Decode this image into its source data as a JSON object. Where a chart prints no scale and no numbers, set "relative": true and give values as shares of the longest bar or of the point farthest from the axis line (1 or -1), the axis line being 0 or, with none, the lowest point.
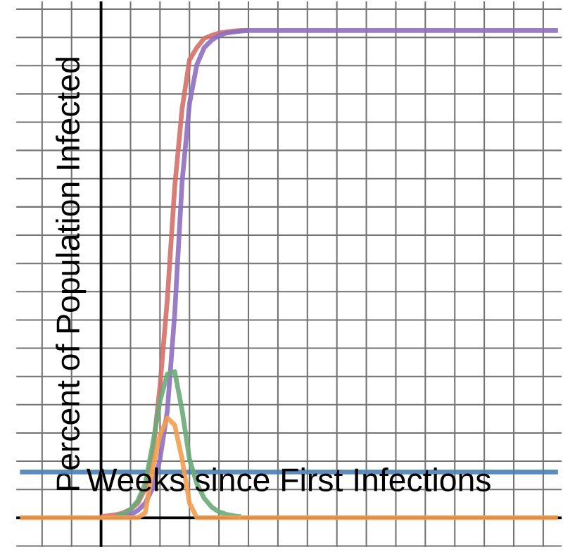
{
  "chart_data": {
    "type": "line",
    "relative": true,
    "xlabel": "Weeks since First Infections",
    "ylabel": "Percent of Population Infected",
    "categories": [
      null,
      null,
      null,
      null,
      null,
      null,
      null,
      null,
      null,
      null,
      null,
      null,
      null,
      null,
      null,
      null,
      null,
      null,
      null,
      null,
      null,
      null,
      null,
      null,
      null,
      null,
      null,
      null,
      null,
      null,
      null,
      null,
      null,
      null,
      null,
      null,
      null,
      null,
      null,
      null,
      null,
      null,
      null,
      null,
      null,
      null,
      null,
      null,
      null,
      null,
      null,
      null,
      null,
      null,
      null,
      null,
      null,
      null,
      null,
      null,
      null,
      null,
      null,
      null,
      null,
      null,
      null,
      null,
      null,
      null,
      null,
      null,
      null,
      null
    ],
    "grid": true,
    "marker": "none",
    "line_style": "solid",
    "series": [
      {
        "color": "#4a7fb5",
        "values": [
          0.094,
          0.094,
          0.094,
          0.094,
          0.094,
          0.094,
          0.094,
          0.094,
          0.094,
          0.094,
          0.094,
          0.094,
          0.094,
          0.094,
          0.094,
          0.094,
          0.094,
          0.094,
          0.094,
          0.094,
          0.094,
          0.094,
          0.094,
          0.094,
          0.094,
          0.094,
          0.094,
          0.094,
          0.094,
          0.094,
          0.094,
          0.094,
          0.094,
          0.094,
          0.094,
          0.094,
          0.094,
          0.094,
          0.094,
          0.094,
          0.094,
          0.094,
          0.094,
          0.094,
          0.094,
          0.094,
          0.094,
          0.094,
          0.094,
          0.094,
          0.094,
          0.094,
          0.094,
          0.094,
          0.094,
          0.094,
          0.094,
          0.094,
          0.094,
          0.094,
          0.094,
          0.094,
          0.094,
          0.094,
          0.094,
          0.094,
          0.094,
          0.094,
          0.094,
          0.094,
          0.094,
          0.094,
          0.094,
          0.094
        ]
      },
      {
        "color": "#d4706a",
        "values": [
          null,
          null,
          null,
          null,
          null,
          null,
          null,
          null,
          null,
          null,
          null,
          0.002,
          0.004,
          0.006,
          0.01,
          0.017,
          0.03,
          0.06,
          0.13,
          0.27,
          0.45,
          0.68,
          0.84,
          0.94,
          0.965,
          0.984,
          0.99,
          0.995,
          0.997,
          0.999,
          1,
          1,
          null,
          null,
          null,
          null,
          null,
          null,
          null,
          null,
          null,
          null,
          null,
          null,
          null,
          null,
          null,
          null,
          null,
          null,
          null,
          null,
          null,
          null,
          null,
          null,
          null,
          null,
          null,
          null,
          null,
          null,
          null,
          null,
          null,
          null,
          null,
          null,
          null,
          null,
          null,
          null,
          null,
          null
        ]
      },
      {
        "color": "#8e6fc0",
        "values": [
          null,
          null,
          null,
          null,
          null,
          null,
          null,
          null,
          null,
          null,
          null,
          null,
          null,
          null,
          0.003,
          0.006,
          0.015,
          0.03,
          0.06,
          0.12,
          0.22,
          0.42,
          0.69,
          0.85,
          0.93,
          0.965,
          0.98,
          0.99,
          0.995,
          0.997,
          0.999,
          1,
          1,
          1,
          1,
          1,
          1,
          1,
          1,
          1,
          1,
          1,
          1,
          1,
          1,
          1,
          1,
          1,
          1,
          1,
          1,
          1,
          1,
          1,
          1,
          1,
          1,
          1,
          1,
          1,
          1,
          1,
          1,
          1,
          1,
          1,
          1,
          1,
          1,
          1,
          1,
          1,
          1,
          1
        ]
      },
      {
        "color": "#6aaa78",
        "values": [
          null,
          null,
          null,
          null,
          null,
          null,
          null,
          null,
          null,
          null,
          null,
          null,
          null,
          0.004,
          0.008,
          0.017,
          0.035,
          0.07,
          0.15,
          0.24,
          0.295,
          0.3,
          0.22,
          0.12,
          0.07,
          0.04,
          0.022,
          0.012,
          0.007,
          0.004,
          0.002,
          null,
          null,
          null,
          null,
          null,
          null,
          null,
          null,
          null,
          null,
          null,
          null,
          null,
          null,
          null,
          null,
          null,
          null,
          null,
          null,
          null,
          null,
          null,
          null,
          null,
          null,
          null,
          null,
          null,
          null,
          null,
          null,
          null,
          null,
          null,
          null,
          null,
          null,
          null,
          null,
          null,
          null,
          null
        ]
      },
      {
        "color": "#f59d4e",
        "values": [
          0,
          0,
          0,
          0,
          0,
          0,
          0,
          0,
          0,
          0,
          0,
          0,
          0,
          0,
          0,
          0,
          0,
          0.01,
          0.1,
          0.17,
          0.205,
          0.19,
          0.12,
          0.03,
          0,
          0,
          0,
          0,
          0,
          0,
          0,
          0,
          0,
          0,
          0,
          0,
          0,
          0,
          0,
          0,
          0,
          0,
          0,
          0,
          0,
          0,
          0,
          0,
          0,
          0,
          0,
          0,
          0,
          0,
          0,
          0,
          0,
          0,
          0,
          0,
          0,
          0,
          0,
          0,
          0,
          0,
          0,
          0,
          0,
          0,
          0,
          0,
          0,
          0
        ]
      }
    ]
  }
}
